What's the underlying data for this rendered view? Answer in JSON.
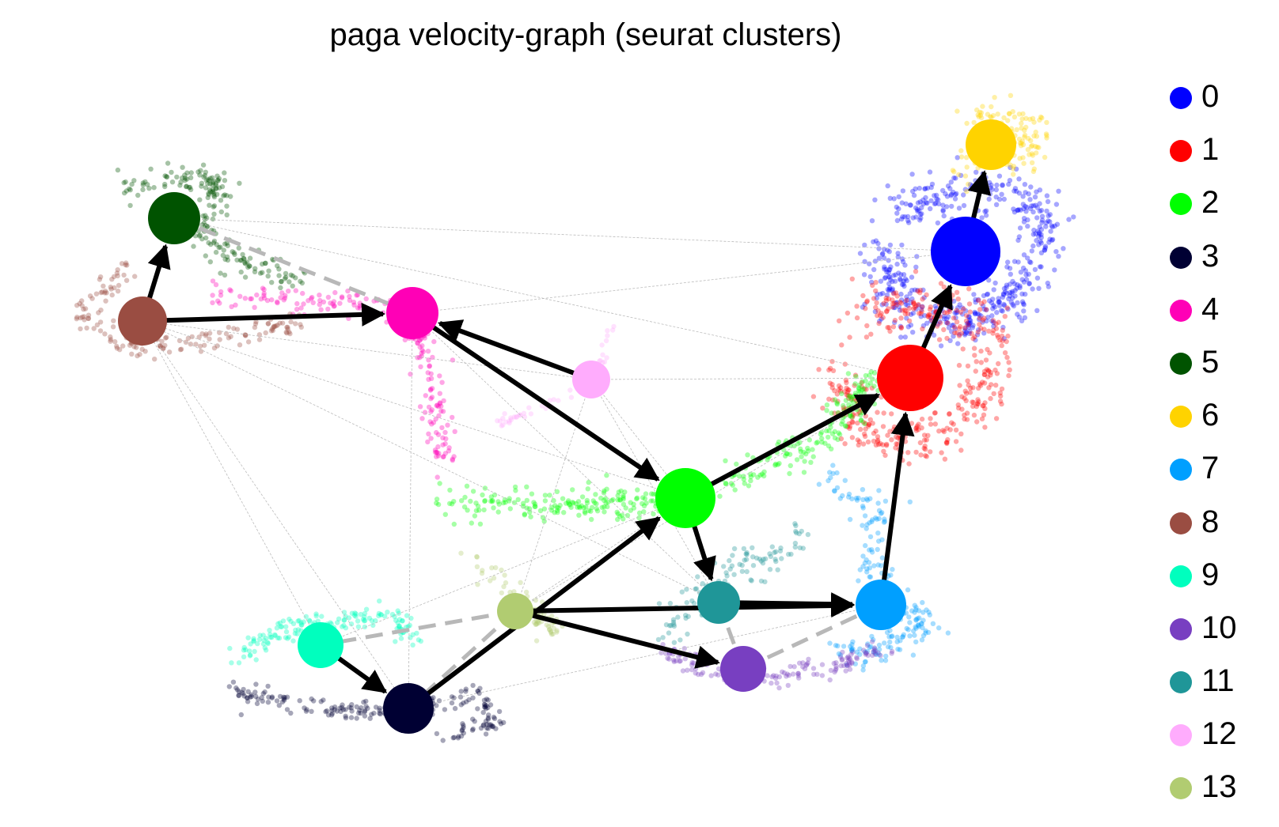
{
  "title": "paga velocity-graph (seurat clusters)",
  "clusters": [
    {
      "id": "0",
      "color": "#0000ff"
    },
    {
      "id": "1",
      "color": "#ff0000"
    },
    {
      "id": "2",
      "color": "#00ff00"
    },
    {
      "id": "3",
      "color": "#000033"
    },
    {
      "id": "4",
      "color": "#ff00b6"
    },
    {
      "id": "5",
      "color": "#005300"
    },
    {
      "id": "6",
      "color": "#ffd300"
    },
    {
      "id": "7",
      "color": "#009fff"
    },
    {
      "id": "8",
      "color": "#9a4d42"
    },
    {
      "id": "9",
      "color": "#00ffbe"
    },
    {
      "id": "10",
      "color": "#783fc1"
    },
    {
      "id": "11",
      "color": "#1f9698"
    },
    {
      "id": "12",
      "color": "#ffacfd"
    },
    {
      "id": "13",
      "color": "#b1cc71"
    }
  ],
  "arrows": [
    [
      "8",
      "5"
    ],
    [
      "8",
      "4"
    ],
    [
      "12",
      "4"
    ],
    [
      "4",
      "2"
    ],
    [
      "2",
      "11"
    ],
    [
      "2",
      "1"
    ],
    [
      "3",
      "2"
    ],
    [
      "13",
      "7"
    ],
    [
      "13",
      "10"
    ],
    [
      "11",
      "7"
    ],
    [
      "7",
      "1"
    ],
    [
      "1",
      "0"
    ],
    [
      "0",
      "6"
    ],
    [
      "9",
      "3"
    ]
  ],
  "dashed_links": [
    [
      "5",
      "4"
    ],
    [
      "13",
      "9"
    ],
    [
      "13",
      "3"
    ],
    [
      "11",
      "10"
    ],
    [
      "10",
      "7"
    ]
  ]
}
